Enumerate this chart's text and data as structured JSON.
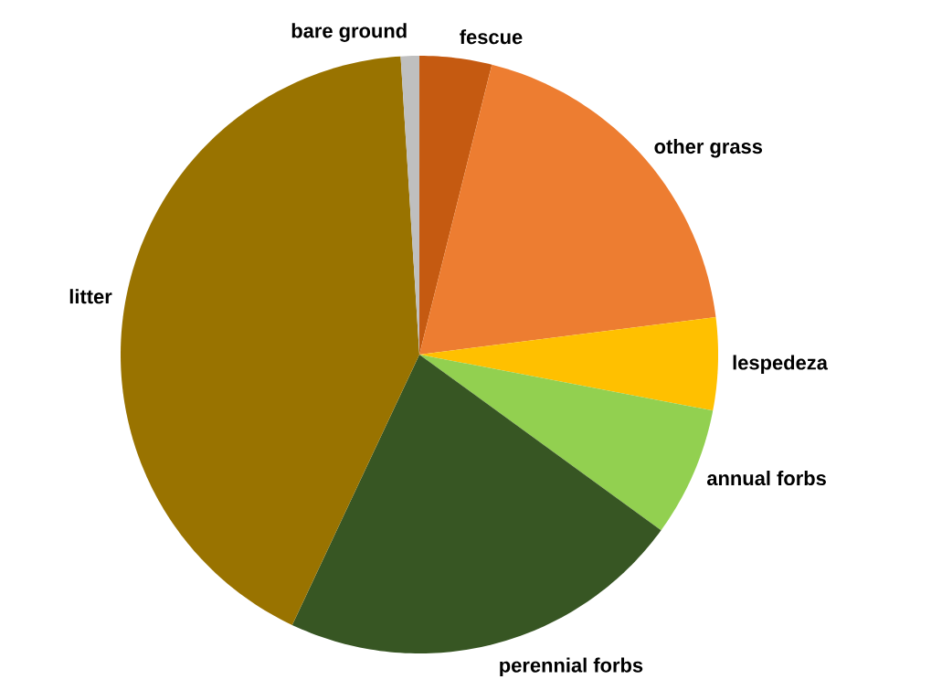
{
  "chart_data": {
    "type": "pie",
    "categories": [
      "fescue",
      "other grass",
      "lespedeza",
      "annual forbs",
      "perennial forbs",
      "litter",
      "bare ground"
    ],
    "values": [
      3.9,
      19.1,
      5.0,
      7.0,
      22.0,
      42.0,
      1.0
    ],
    "colors": [
      "#c55a11",
      "#ed7d31",
      "#ffc000",
      "#92d050",
      "#375623",
      "#997300",
      "#bfbfbf"
    ]
  }
}
